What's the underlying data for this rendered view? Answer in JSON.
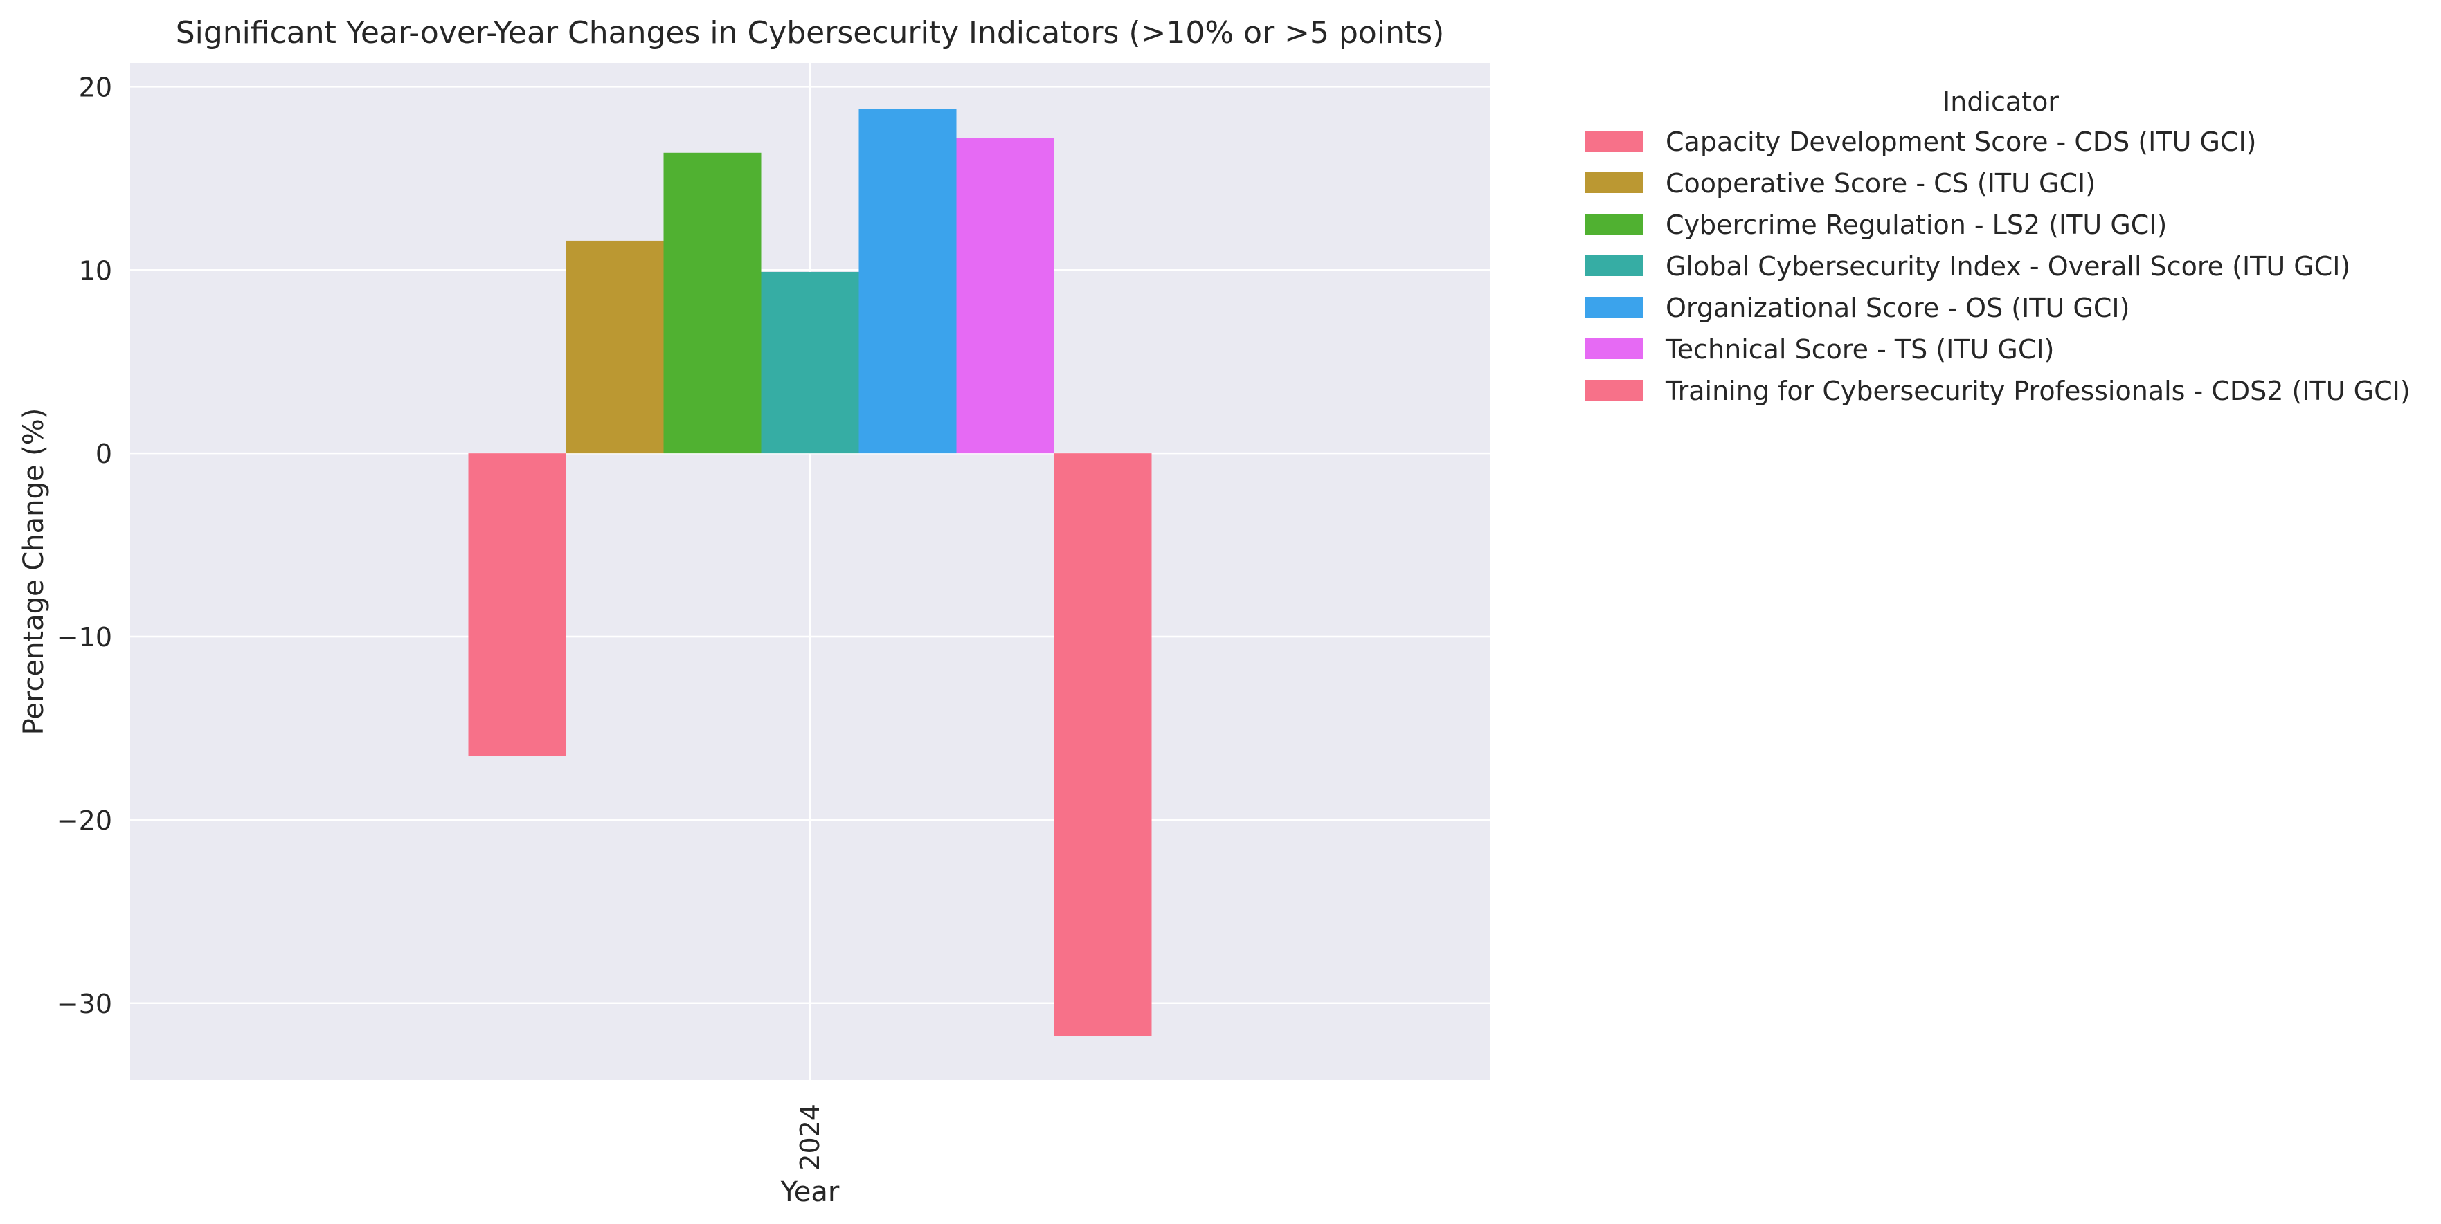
{
  "chart_data": {
    "type": "bar",
    "title": "Significant Year-over-Year Changes in Cybersecurity Indicators (>10% or >5 points)",
    "xlabel": "Year",
    "ylabel": "Percentage Change (%)",
    "categories": [
      "2024"
    ],
    "ylim": [
      -34.2,
      21.3
    ],
    "yticks": [
      20,
      10,
      0,
      -10,
      -20,
      -30
    ],
    "ytick_labels": [
      "20",
      "10",
      "0",
      "−10",
      "−20",
      "−30"
    ],
    "grid": true,
    "legend": {
      "title": "Indicator",
      "placement": "outside-right-top"
    },
    "series": [
      {
        "name": "Capacity Development Score - CDS (ITU GCI)",
        "values": [
          -16.5
        ],
        "color": "#f77189"
      },
      {
        "name": "Cooperative Score - CS (ITU GCI)",
        "values": [
          11.6
        ],
        "color": "#bb9832"
      },
      {
        "name": "Cybercrime Regulation - LS2 (ITU GCI)",
        "values": [
          16.4
        ],
        "color": "#50b131"
      },
      {
        "name": "Global Cybersecurity Index - Overall Score (ITU GCI)",
        "values": [
          9.9
        ],
        "color": "#36ada4"
      },
      {
        "name": "Organizational Score - OS (ITU GCI)",
        "values": [
          18.8
        ],
        "color": "#3ba3ec"
      },
      {
        "name": "Technical Score - TS (ITU GCI)",
        "values": [
          17.2
        ],
        "color": "#e66af4"
      },
      {
        "name": "Training for Cybersecurity Professionals - CDS2 (ITU GCI)",
        "values": [
          -31.8
        ],
        "color": "#f77189"
      }
    ]
  }
}
